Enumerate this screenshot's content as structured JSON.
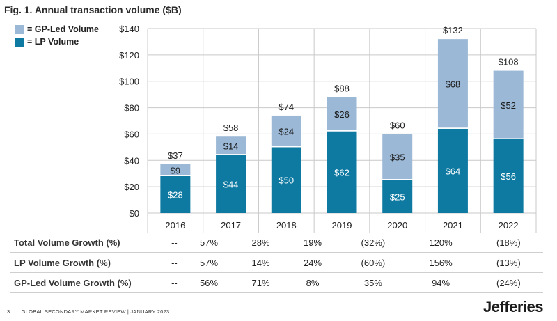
{
  "title": "Fig. 1. Annual transaction volume ($B)",
  "legend": [
    {
      "label": "= GP-Led Volume",
      "color": "#9bb8d6"
    },
    {
      "label": "= LP Volume",
      "color": "#0f7aa1"
    }
  ],
  "chart_data": {
    "type": "bar",
    "stacked": true,
    "title": "Fig. 1. Annual transaction volume ($B)",
    "categories": [
      "2016",
      "2017",
      "2018",
      "2019",
      "2020",
      "2021",
      "2022"
    ],
    "series": [
      {
        "name": "LP Volume",
        "color": "#0f7aa1",
        "values": [
          28,
          44,
          50,
          62,
          25,
          64,
          56
        ],
        "labels": [
          "$28",
          "$44",
          "$50",
          "$62",
          "$25",
          "$64",
          "$56"
        ]
      },
      {
        "name": "GP-Led Volume",
        "color": "#9bb8d6",
        "values": [
          9,
          14,
          24,
          26,
          35,
          68,
          52
        ],
        "labels": [
          "$9",
          "$14",
          "$24",
          "$26",
          "$35",
          "$68",
          "$52"
        ]
      }
    ],
    "totals": [
      "$37",
      "$58",
      "$74",
      "$88",
      "$60",
      "$132",
      "$108"
    ],
    "ylim": [
      0,
      140
    ],
    "yticks": [
      0,
      20,
      40,
      60,
      80,
      100,
      120,
      140
    ],
    "ytick_labels": [
      "$0",
      "$20",
      "$40",
      "$60",
      "$80",
      "$100",
      "$120",
      "$140"
    ],
    "grid": true,
    "xlabel": "",
    "ylabel": ""
  },
  "growth_table": [
    {
      "label": "Total Volume Growth (%)",
      "values": [
        "--",
        "57%",
        "28%",
        "19%",
        "(32%)",
        "120%",
        "(18%)"
      ]
    },
    {
      "label": "LP Volume Growth (%)",
      "values": [
        "--",
        "57%",
        "14%",
        "24%",
        "(60%)",
        "156%",
        "(13%)"
      ]
    },
    {
      "label": "GP-Led Volume Growth (%)",
      "values": [
        "--",
        "56%",
        "71%",
        "8%",
        "35%",
        "94%",
        "(24%)"
      ]
    }
  ],
  "footer": {
    "page": "3",
    "text": "GLOBAL SECONDARY MARKET REVIEW  |  JANUARY 2023"
  },
  "logo": "Jefferies"
}
